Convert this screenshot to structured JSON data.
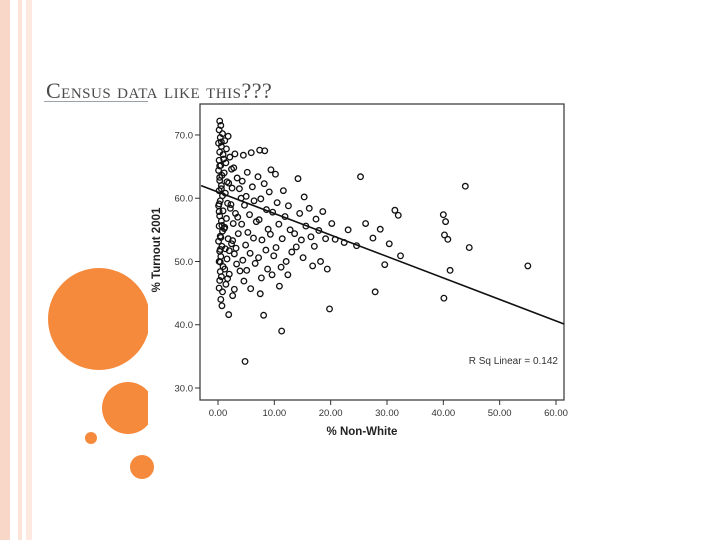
{
  "slide": {
    "title": "Census data like this???"
  },
  "colors": {
    "accent": "#f58a3c",
    "stripe": "#f8d6c8",
    "points": "#111111"
  },
  "chart_data": {
    "type": "scatter",
    "title": "",
    "xlabel": "% Non-White",
    "ylabel": "% Turnout 2001",
    "xlim": [
      0,
      60
    ],
    "ylim": [
      30,
      73
    ],
    "xticks": [
      "0.00",
      "10.00",
      "20.00",
      "30.00",
      "40.00",
      "50.00",
      "60.00"
    ],
    "yticks": [
      "30.0",
      "40.0",
      "50.0",
      "60.0",
      "70.0"
    ],
    "grid": false,
    "fit_line": {
      "type": "linear",
      "x": [
        -3,
        60
      ],
      "y": [
        62.0,
        40.6
      ]
    },
    "annotation": "R Sq Linear = 0.142",
    "points": [
      [
        0.3,
        72.2
      ],
      [
        0.5,
        71.5
      ],
      [
        0.2,
        70.8
      ],
      [
        0.8,
        70.2
      ],
      [
        0.4,
        69.6
      ],
      [
        1.2,
        69.1
      ],
      [
        0.1,
        68.7
      ],
      [
        0.6,
        68.2
      ],
      [
        1.5,
        67.8
      ],
      [
        0.3,
        67.3
      ],
      [
        0.9,
        66.9
      ],
      [
        2.1,
        66.5
      ],
      [
        0.2,
        66.0
      ],
      [
        1.4,
        65.6
      ],
      [
        0.5,
        65.2
      ],
      [
        2.8,
        64.8
      ],
      [
        0.1,
        64.4
      ],
      [
        1.1,
        64.0
      ],
      [
        0.7,
        63.6
      ],
      [
        3.4,
        63.2
      ],
      [
        0.3,
        62.8
      ],
      [
        1.9,
        62.4
      ],
      [
        0.6,
        62.0
      ],
      [
        2.5,
        61.6
      ],
      [
        0.2,
        61.2
      ],
      [
        1.3,
        60.8
      ],
      [
        0.8,
        60.4
      ],
      [
        4.1,
        60.0
      ],
      [
        0.4,
        59.6
      ],
      [
        1.7,
        59.2
      ],
      [
        0.1,
        58.8
      ],
      [
        2.2,
        58.4
      ],
      [
        0.9,
        58.0
      ],
      [
        3.1,
        57.6
      ],
      [
        0.3,
        57.2
      ],
      [
        1.5,
        56.8
      ],
      [
        0.6,
        56.4
      ],
      [
        2.7,
        56.0
      ],
      [
        0.2,
        55.6
      ],
      [
        1.1,
        55.2
      ],
      [
        0.8,
        54.8
      ],
      [
        3.6,
        54.4
      ],
      [
        0.4,
        54.0
      ],
      [
        1.8,
        53.6
      ],
      [
        0.1,
        53.2
      ],
      [
        2.4,
        52.8
      ],
      [
        0.7,
        52.4
      ],
      [
        1.3,
        52.0
      ],
      [
        0.3,
        51.6
      ],
      [
        2.9,
        51.2
      ],
      [
        0.5,
        50.8
      ],
      [
        1.6,
        50.4
      ],
      [
        0.2,
        50.0
      ],
      [
        3.3,
        49.6
      ],
      [
        0.9,
        49.2
      ],
      [
        1.2,
        48.8
      ],
      [
        0.4,
        48.4
      ],
      [
        2.0,
        48.0
      ],
      [
        0.6,
        47.6
      ],
      [
        0.3,
        47.0
      ],
      [
        1.4,
        46.4
      ],
      [
        0.2,
        45.8
      ],
      [
        0.8,
        45.2
      ],
      [
        2.6,
        44.6
      ],
      [
        0.5,
        44.0
      ],
      [
        0.7,
        43.0
      ],
      [
        1.9,
        41.6
      ],
      [
        4.8,
        34.2
      ],
      [
        0.3,
        65.1
      ],
      [
        0.6,
        61.5
      ],
      [
        0.2,
        57.9
      ],
      [
        0.5,
        53.8
      ],
      [
        0.4,
        49.9
      ],
      [
        0.3,
        63.3
      ],
      [
        0.2,
        59.1
      ],
      [
        0.7,
        55.7
      ],
      [
        0.4,
        51.9
      ],
      [
        0.6,
        68.9
      ],
      [
        4.5,
        66.8
      ],
      [
        5.2,
        64.1
      ],
      [
        5.9,
        67.2
      ],
      [
        4.3,
        62.7
      ],
      [
        5.0,
        60.3
      ],
      [
        6.1,
        61.8
      ],
      [
        4.7,
        58.9
      ],
      [
        5.6,
        57.4
      ],
      [
        6.4,
        59.6
      ],
      [
        4.2,
        55.9
      ],
      [
        5.3,
        54.6
      ],
      [
        6.8,
        56.3
      ],
      [
        4.9,
        52.6
      ],
      [
        5.7,
        51.3
      ],
      [
        6.3,
        53.7
      ],
      [
        4.4,
        50.2
      ],
      [
        5.1,
        48.6
      ],
      [
        6.6,
        49.7
      ],
      [
        4.6,
        46.9
      ],
      [
        5.8,
        45.7
      ],
      [
        7.1,
        63.4
      ],
      [
        7.4,
        67.6
      ],
      [
        8.3,
        67.5
      ],
      [
        7.6,
        59.9
      ],
      [
        8.2,
        62.3
      ],
      [
        7.3,
        56.6
      ],
      [
        8.6,
        58.2
      ],
      [
        7.8,
        53.4
      ],
      [
        8.9,
        55.1
      ],
      [
        7.2,
        50.6
      ],
      [
        8.5,
        51.8
      ],
      [
        7.7,
        47.4
      ],
      [
        8.8,
        48.8
      ],
      [
        7.5,
        44.9
      ],
      [
        8.1,
        41.5
      ],
      [
        9.4,
        64.5
      ],
      [
        9.1,
        61.0
      ],
      [
        9.7,
        57.8
      ],
      [
        9.3,
        54.3
      ],
      [
        9.9,
        50.9
      ],
      [
        9.6,
        47.9
      ],
      [
        10.2,
        63.8
      ],
      [
        10.5,
        59.3
      ],
      [
        10.8,
        55.9
      ],
      [
        10.3,
        52.2
      ],
      [
        11.2,
        49.1
      ],
      [
        10.9,
        46.1
      ],
      [
        11.6,
        61.2
      ],
      [
        11.9,
        57.1
      ],
      [
        11.4,
        53.6
      ],
      [
        12.1,
        50.0
      ],
      [
        11.3,
        39.0
      ],
      [
        12.5,
        58.8
      ],
      [
        12.8,
        55.0
      ],
      [
        13.1,
        51.5
      ],
      [
        12.4,
        47.9
      ],
      [
        13.6,
        54.4
      ],
      [
        13.9,
        52.3
      ],
      [
        14.2,
        63.1
      ],
      [
        14.5,
        57.6
      ],
      [
        14.8,
        53.4
      ],
      [
        15.3,
        60.2
      ],
      [
        15.6,
        55.6
      ],
      [
        15.1,
        50.6
      ],
      [
        16.2,
        58.4
      ],
      [
        16.5,
        53.9
      ],
      [
        16.8,
        49.3
      ],
      [
        17.4,
        56.7
      ],
      [
        17.1,
        52.4
      ],
      [
        17.9,
        54.9
      ],
      [
        18.2,
        50.0
      ],
      [
        18.6,
        57.9
      ],
      [
        19.1,
        53.6
      ],
      [
        19.4,
        48.8
      ],
      [
        20.2,
        56.0
      ],
      [
        20.8,
        53.5
      ],
      [
        19.8,
        42.5
      ],
      [
        22.4,
        53.0
      ],
      [
        23.1,
        55.0
      ],
      [
        24.6,
        52.5
      ],
      [
        25.3,
        63.4
      ],
      [
        26.2,
        56.0
      ],
      [
        27.5,
        53.7
      ],
      [
        27.9,
        45.2
      ],
      [
        28.8,
        55.1
      ],
      [
        29.6,
        49.5
      ],
      [
        30.4,
        52.8
      ],
      [
        31.4,
        58.1
      ],
      [
        32.0,
        57.3
      ],
      [
        32.4,
        50.9
      ],
      [
        40.0,
        57.4
      ],
      [
        40.2,
        54.2
      ],
      [
        40.4,
        56.3
      ],
      [
        40.8,
        53.5
      ],
      [
        40.1,
        44.2
      ],
      [
        41.2,
        48.6
      ],
      [
        43.9,
        61.9
      ],
      [
        44.6,
        52.2
      ],
      [
        55.0,
        49.3
      ],
      [
        1.0,
        66.2
      ],
      [
        1.6,
        62.6
      ],
      [
        2.3,
        59.0
      ],
      [
        1.2,
        55.4
      ],
      [
        2.0,
        51.7
      ],
      [
        1.7,
        47.3
      ],
      [
        2.9,
        45.6
      ],
      [
        3.8,
        61.5
      ],
      [
        3.5,
        57.0
      ],
      [
        3.2,
        52.1
      ],
      [
        3.9,
        48.5
      ],
      [
        2.4,
        64.6
      ],
      [
        1.8,
        69.8
      ],
      [
        3.0,
        67.0
      ],
      [
        2.6,
        53.3
      ]
    ]
  }
}
